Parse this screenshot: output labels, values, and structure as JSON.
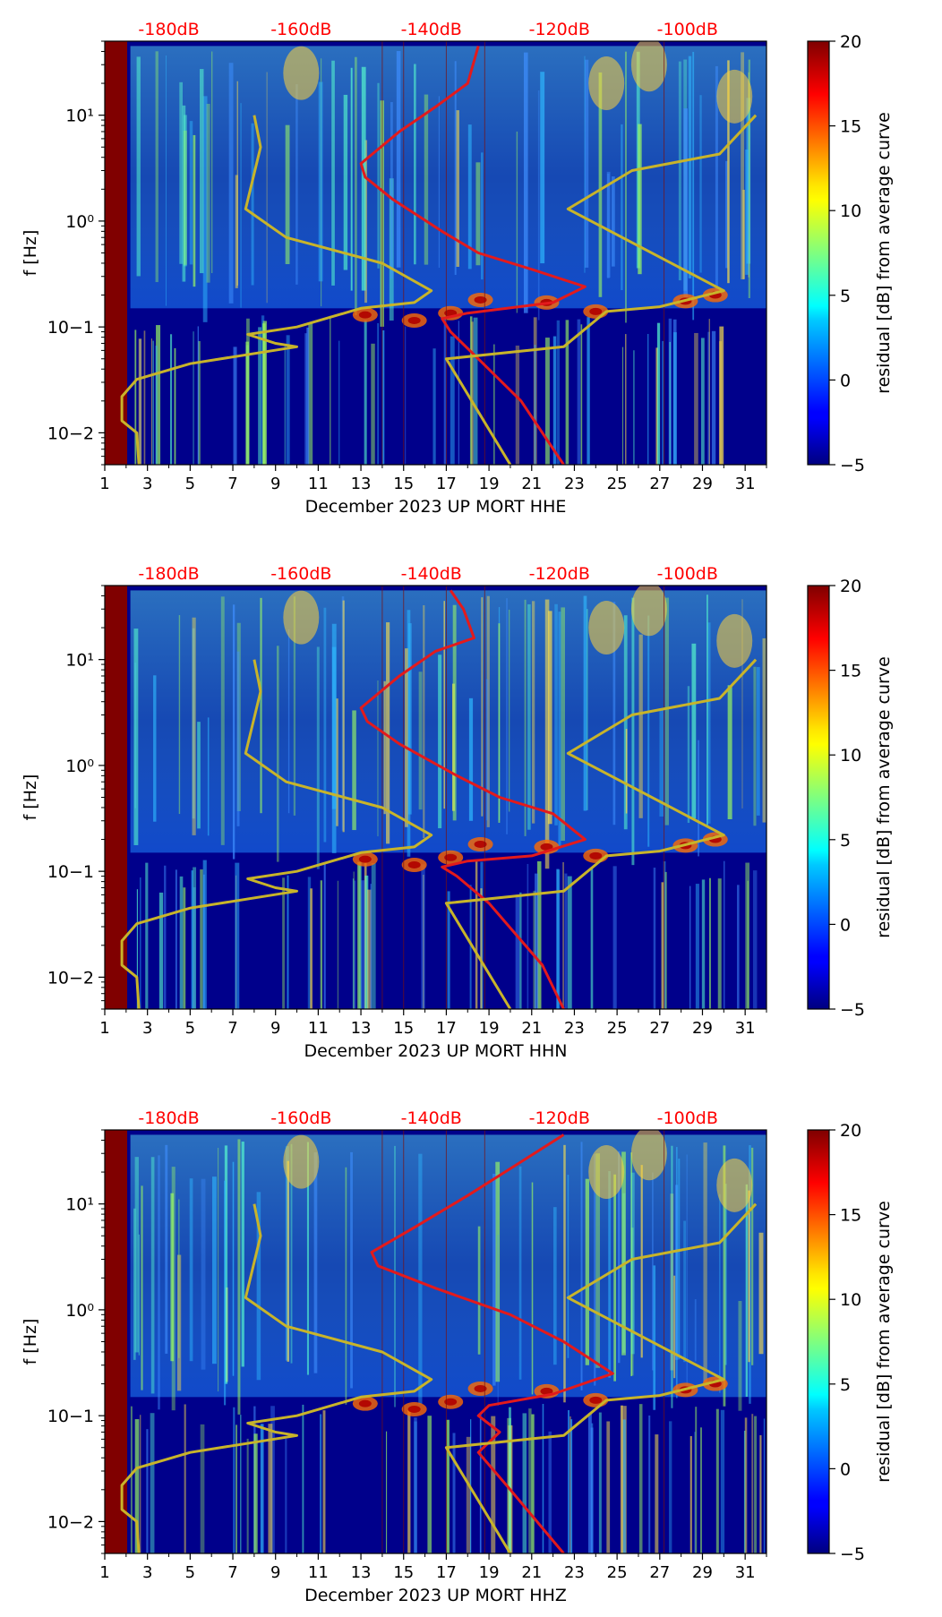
{
  "chart_data": [
    {
      "type": "heatmap",
      "xlabel": "December 2023 UP MORT  HHE",
      "ylabel": "f [Hz]",
      "x_ticks": [
        "1",
        "3",
        "5",
        "7",
        "9",
        "11",
        "13",
        "15",
        "17",
        "19",
        "21",
        "23",
        "25",
        "27",
        "29",
        "31"
      ],
      "x_range": [
        1,
        32
      ],
      "y_scale": "log",
      "y_range": [
        0.005,
        50
      ],
      "y_ticks": [
        "10−2",
        "10−1",
        "10⁰",
        "10¹"
      ],
      "top_labels": [
        "-180dB",
        "-160dB",
        "-140dB",
        "-120dB",
        "-100dB"
      ],
      "colorbar": {
        "label": "residual [dB] from average curve",
        "ticks": [
          "20",
          "15",
          "10",
          "5",
          "0",
          "−5"
        ],
        "range": [
          -5,
          20
        ],
        "colormap": "jet"
      },
      "series": [
        {
          "color": "#e31a1c",
          "points": [
            [
              18.5,
              45
            ],
            [
              18,
              20
            ],
            [
              16.5,
              12
            ],
            [
              14.8,
              7
            ],
            [
              13,
              3.5
            ],
            [
              13.2,
              2.6
            ],
            [
              14.5,
              1.6
            ],
            [
              16.8,
              0.8
            ],
            [
              18.5,
              0.5
            ],
            [
              21,
              0.35
            ],
            [
              23.5,
              0.24
            ],
            [
              22,
              0.17
            ],
            [
              18,
              0.135
            ],
            [
              16.8,
              0.12
            ],
            [
              17.2,
              0.09
            ],
            [
              18.5,
              0.05
            ],
            [
              20.5,
              0.02
            ],
            [
              22.5,
              0.005
            ]
          ]
        },
        {
          "color": "#c8b42a",
          "points": [
            [
              8,
              10
            ],
            [
              8.3,
              5
            ],
            [
              7.6,
              1.3
            ],
            [
              9.5,
              0.7
            ],
            [
              14,
              0.4
            ],
            [
              16.3,
              0.22
            ],
            [
              15.5,
              0.17
            ],
            [
              13,
              0.15
            ],
            [
              10,
              0.1
            ],
            [
              7.7,
              0.085
            ],
            [
              9,
              0.07
            ],
            [
              10,
              0.065
            ],
            [
              5,
              0.045
            ],
            [
              2.5,
              0.032
            ],
            [
              1.8,
              0.022
            ],
            [
              1.8,
              0.013
            ],
            [
              2.5,
              0.01
            ],
            [
              2.6,
              0.005
            ]
          ]
        },
        {
          "color": "#c8b42a",
          "points": [
            [
              31.5,
              10
            ],
            [
              29.8,
              4.3
            ],
            [
              25.7,
              3
            ],
            [
              22.7,
              1.3
            ],
            [
              30,
              0.22
            ],
            [
              27,
              0.155
            ],
            [
              24.5,
              0.14
            ],
            [
              22.5,
              0.065
            ],
            [
              17,
              0.05
            ],
            [
              20,
              0.005
            ]
          ]
        }
      ]
    },
    {
      "type": "heatmap",
      "xlabel": "December 2023 UP MORT  HHN",
      "ylabel": "f [Hz]",
      "x_ticks": [
        "1",
        "3",
        "5",
        "7",
        "9",
        "11",
        "13",
        "15",
        "17",
        "19",
        "21",
        "23",
        "25",
        "27",
        "29",
        "31"
      ],
      "x_range": [
        1,
        32
      ],
      "y_scale": "log",
      "y_range": [
        0.005,
        50
      ],
      "y_ticks": [
        "10−2",
        "10−1",
        "10⁰",
        "10¹"
      ],
      "top_labels": [
        "-180dB",
        "-160dB",
        "-140dB",
        "-120dB",
        "-100dB"
      ],
      "colorbar": {
        "label": "residual [dB] from average curve",
        "ticks": [
          "20",
          "15",
          "10",
          "5",
          "0",
          "−5"
        ],
        "range": [
          -5,
          20
        ],
        "colormap": "jet"
      },
      "series": [
        {
          "color": "#e31a1c",
          "points": [
            [
              17.2,
              45
            ],
            [
              17.8,
              30
            ],
            [
              18.3,
              16
            ],
            [
              16.5,
              12
            ],
            [
              14.8,
              7
            ],
            [
              13,
              3.5
            ],
            [
              13.3,
              2.6
            ],
            [
              14.8,
              1.6
            ],
            [
              17.5,
              0.8
            ],
            [
              19.5,
              0.5
            ],
            [
              22,
              0.35
            ],
            [
              23.5,
              0.2
            ],
            [
              21,
              0.14
            ],
            [
              18,
              0.125
            ],
            [
              16.8,
              0.11
            ],
            [
              17.5,
              0.09
            ],
            [
              19,
              0.05
            ],
            [
              21.5,
              0.013
            ],
            [
              22.5,
              0.005
            ]
          ]
        },
        {
          "color": "#c8b42a",
          "points": [
            [
              8,
              10
            ],
            [
              8.3,
              5
            ],
            [
              7.6,
              1.3
            ],
            [
              9.5,
              0.7
            ],
            [
              14,
              0.4
            ],
            [
              16.3,
              0.22
            ],
            [
              15.5,
              0.17
            ],
            [
              13,
              0.15
            ],
            [
              10,
              0.1
            ],
            [
              7.7,
              0.085
            ],
            [
              9,
              0.07
            ],
            [
              10,
              0.065
            ],
            [
              5,
              0.045
            ],
            [
              2.5,
              0.032
            ],
            [
              1.8,
              0.022
            ],
            [
              1.8,
              0.013
            ],
            [
              2.5,
              0.01
            ],
            [
              2.6,
              0.005
            ]
          ]
        },
        {
          "color": "#c8b42a",
          "points": [
            [
              31.5,
              10
            ],
            [
              29.8,
              4.3
            ],
            [
              25.7,
              3
            ],
            [
              22.7,
              1.3
            ],
            [
              30,
              0.22
            ],
            [
              27,
              0.155
            ],
            [
              24.5,
              0.14
            ],
            [
              22.5,
              0.065
            ],
            [
              17,
              0.05
            ],
            [
              20,
              0.005
            ]
          ]
        }
      ]
    },
    {
      "type": "heatmap",
      "xlabel": "December 2023 UP MORT  HHZ",
      "ylabel": "f [Hz]",
      "x_ticks": [
        "1",
        "3",
        "5",
        "7",
        "9",
        "11",
        "13",
        "15",
        "17",
        "19",
        "21",
        "23",
        "25",
        "27",
        "29",
        "31"
      ],
      "x_range": [
        1,
        32
      ],
      "y_scale": "log",
      "y_range": [
        0.005,
        50
      ],
      "y_ticks": [
        "10−2",
        "10−1",
        "10⁰",
        "10¹"
      ],
      "top_labels": [
        "-180dB",
        "-160dB",
        "-140dB",
        "-120dB",
        "-100dB"
      ],
      "colorbar": {
        "label": "residual [dB] from average curve",
        "ticks": [
          "20",
          "15",
          "10",
          "5",
          "0",
          "−5"
        ],
        "range": [
          -5,
          20
        ],
        "colormap": "jet"
      },
      "series": [
        {
          "color": "#e31a1c",
          "points": [
            [
              22.5,
              45
            ],
            [
              20.5,
              25
            ],
            [
              18,
              12
            ],
            [
              15.5,
              6
            ],
            [
              13.5,
              3.5
            ],
            [
              13.8,
              2.6
            ],
            [
              16.5,
              1.6
            ],
            [
              20,
              0.9
            ],
            [
              22.5,
              0.5
            ],
            [
              24.8,
              0.25
            ],
            [
              22,
              0.16
            ],
            [
              19,
              0.125
            ],
            [
              18.5,
              0.1
            ],
            [
              19.5,
              0.07
            ],
            [
              18.5,
              0.045
            ],
            [
              20,
              0.02
            ],
            [
              22.5,
              0.005
            ]
          ]
        },
        {
          "color": "#c8b42a",
          "points": [
            [
              8,
              10
            ],
            [
              8.3,
              5
            ],
            [
              7.6,
              1.3
            ],
            [
              9.5,
              0.7
            ],
            [
              14,
              0.4
            ],
            [
              16.3,
              0.22
            ],
            [
              15.5,
              0.17
            ],
            [
              13,
              0.15
            ],
            [
              10,
              0.1
            ],
            [
              7.7,
              0.085
            ],
            [
              9,
              0.07
            ],
            [
              10,
              0.065
            ],
            [
              5,
              0.045
            ],
            [
              2.5,
              0.032
            ],
            [
              1.8,
              0.022
            ],
            [
              1.8,
              0.013
            ],
            [
              2.5,
              0.01
            ],
            [
              2.6,
              0.005
            ]
          ]
        },
        {
          "color": "#c8b42a",
          "points": [
            [
              31.5,
              10
            ],
            [
              29.8,
              4.3
            ],
            [
              25.7,
              3
            ],
            [
              22.7,
              1.3
            ],
            [
              30,
              0.22
            ],
            [
              27,
              0.155
            ],
            [
              24.5,
              0.14
            ],
            [
              22.5,
              0.065
            ],
            [
              17,
              0.05
            ],
            [
              20,
              0.005
            ]
          ]
        }
      ]
    }
  ]
}
